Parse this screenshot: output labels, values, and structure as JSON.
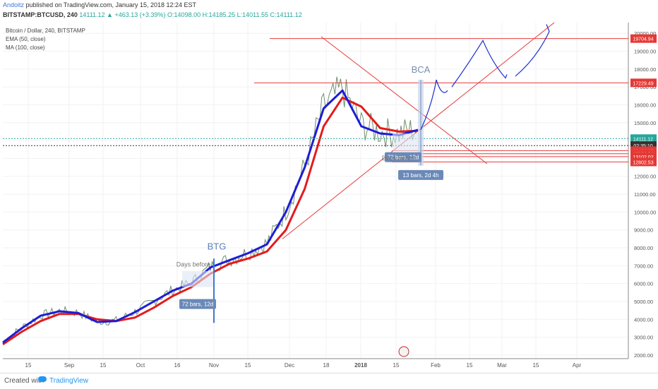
{
  "header": {
    "author": "Andoitz",
    "published": "published on TradingView.com, January 15, 2018 12:24 EST",
    "symbol": "BITSTAMP:BTCUSD, 240",
    "change": "14111.12 ▲ +463.13 (+3.39%)",
    "ohlc": "O:14098.00 H:14185.25 L:14011.55 C:14111.12"
  },
  "legend": {
    "title": "Bitcoin / Dollar, 240, BITSTAMP",
    "ema": "EMA (50, close)",
    "ma": "MA (100, close)"
  },
  "footer": {
    "created": "Created with",
    "brand": "TradingView"
  },
  "colors": {
    "ema": "#1d1dd6",
    "ma": "#e31b1b",
    "annotation": "#e63b3b",
    "drawing": "#1a2fd1",
    "label_bg": "#6b89b8",
    "price_green": "#26a69a",
    "price_red": "#e53935"
  },
  "chart_data": {
    "type": "line",
    "x_ticks": [
      "15",
      "Sep",
      "15",
      "Oct",
      "16",
      "Nov",
      "15",
      "Dec",
      "18",
      "2018",
      "15",
      "Feb",
      "15",
      "Mar",
      "15",
      "Apr"
    ],
    "y_ticks": [
      "2000.00",
      "3000.00",
      "4000.00",
      "5000.00",
      "6000.00",
      "7000.00",
      "8000.00",
      "9000.00",
      "10000.00",
      "11000.00",
      "12000.00",
      "13000.00",
      "14000.00",
      "15000.00",
      "16000.00",
      "17000.00",
      "18000.00",
      "19000.00",
      "20000.00"
    ],
    "ylim": [
      1800,
      20600
    ],
    "series": [
      {
        "name": "EMA (50, close)",
        "values": [
          2700,
          3500,
          4200,
          4450,
          4350,
          3850,
          3900,
          4400,
          5000,
          5600,
          6000,
          6900,
          7300,
          7700,
          8200,
          10000,
          12500,
          15800,
          16800,
          14800,
          14400,
          14300,
          14600
        ]
      },
      {
        "name": "MA (100, close)",
        "values": [
          2600,
          3300,
          3900,
          4300,
          4300,
          4000,
          3900,
          4100,
          4650,
          5300,
          5800,
          6550,
          7100,
          7400,
          7800,
          9000,
          11300,
          14800,
          16400,
          15900,
          14700,
          14500,
          14550
        ]
      }
    ],
    "price_labels": [
      {
        "value": "19704.94",
        "price": 19704.94,
        "kind": "red"
      },
      {
        "value": "17229.49",
        "price": 17229.49,
        "kind": "red"
      },
      {
        "value": "14111.12",
        "price": 14111.12,
        "kind": "green"
      },
      {
        "value": "02:35:10",
        "price": 13720,
        "kind": "dark"
      },
      {
        "value": "13434.67",
        "price": 13434.67,
        "kind": "red"
      },
      {
        "value": "13264.34",
        "price": 13264.34,
        "kind": "red"
      },
      {
        "value": "13102.02",
        "price": 13102.02,
        "kind": "red"
      },
      {
        "value": "12802.53",
        "price": 12802.53,
        "kind": "red"
      }
    ],
    "annotations": {
      "btg": "BTG",
      "bca": "BCA",
      "days_before": "Days before",
      "bars_72": "72 bars, 12d",
      "bars_13": "13 bars, 2d 4h"
    }
  }
}
